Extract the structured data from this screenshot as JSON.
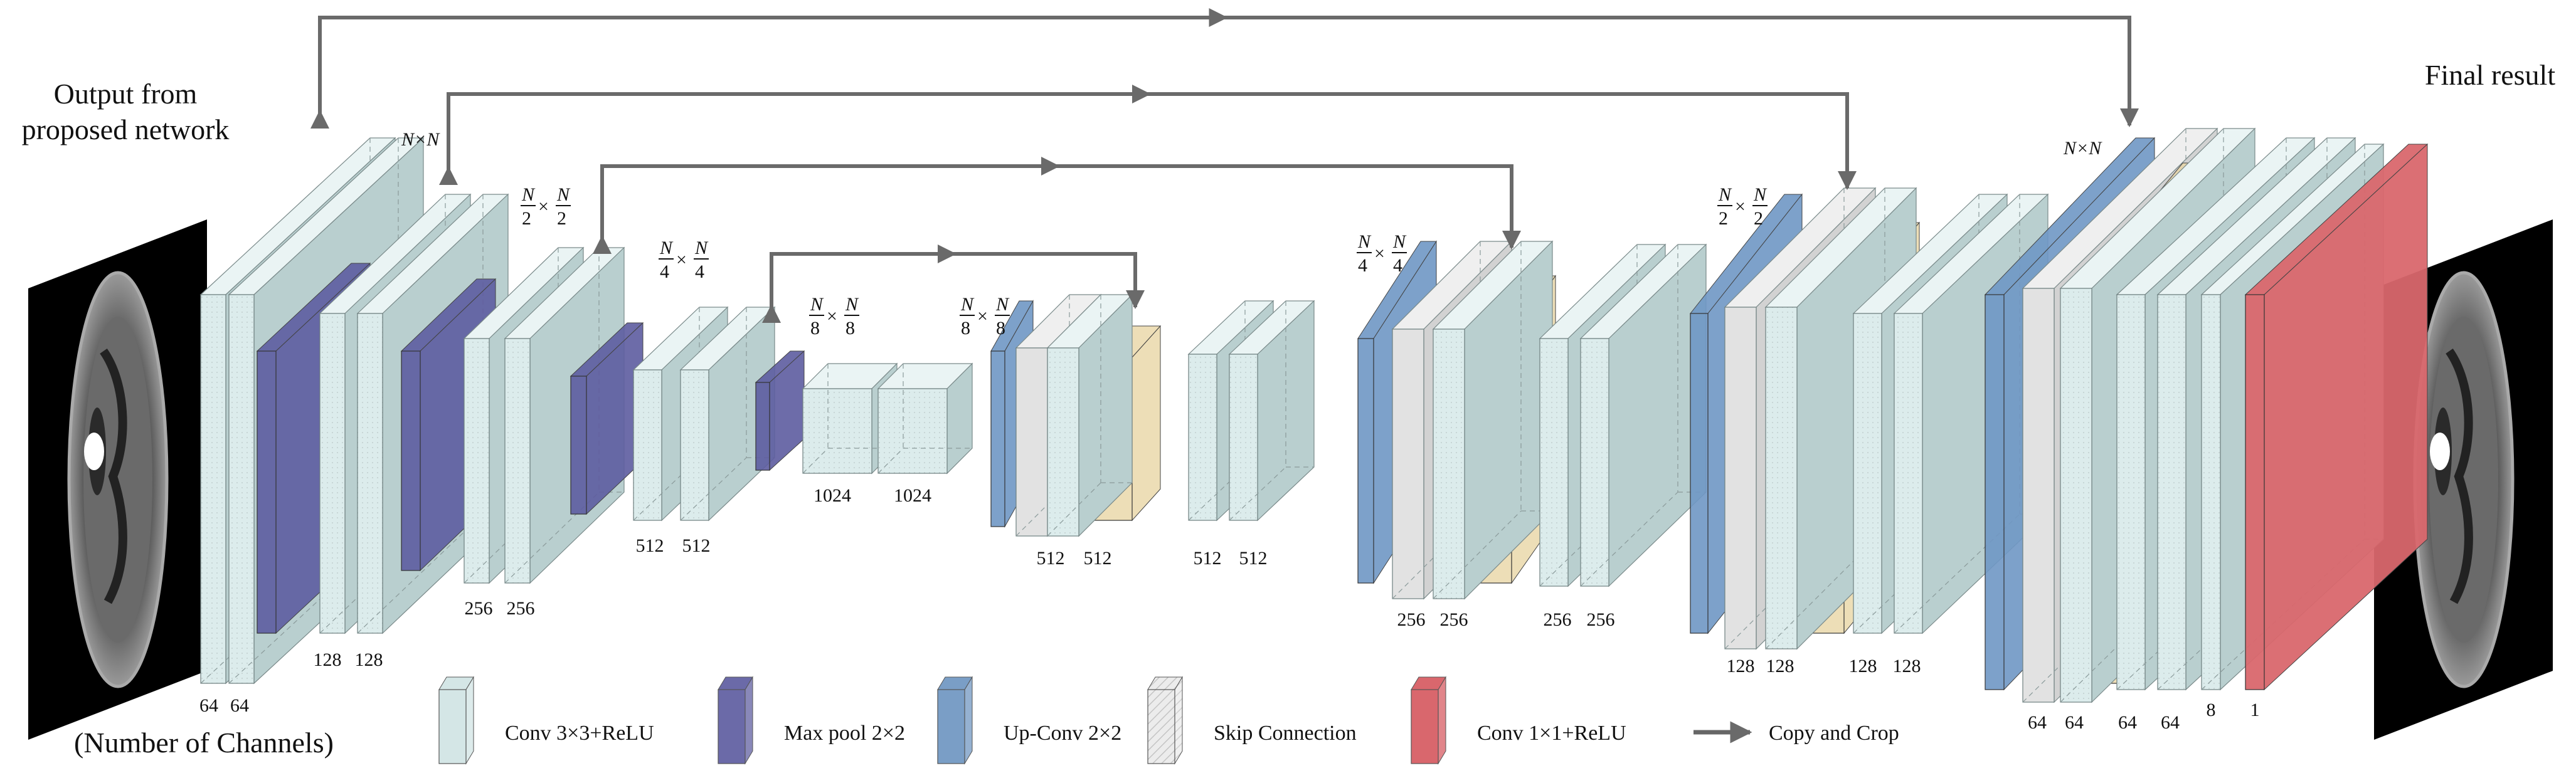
{
  "labels": {
    "input_title_line1": "Output from",
    "input_title_line2": "proposed network",
    "output_title": "Final result",
    "channels_caption": "(Number of Channels)"
  },
  "dimension_labels": {
    "level1_left": "N×N",
    "level1_right": "N×N",
    "frac_num": "N",
    "frac_op": "×",
    "den_level2": "2",
    "den_level3": "4",
    "den_level4": "8"
  },
  "channel_counts": {
    "enc1": [
      "64",
      "64"
    ],
    "enc2": [
      "128",
      "128"
    ],
    "enc3": [
      "256",
      "256"
    ],
    "enc4": [
      "512",
      "512"
    ],
    "bottleneck": [
      "1024",
      "1024"
    ],
    "dec4_up": [
      "512",
      "512"
    ],
    "dec4_conv": [
      "512",
      "512"
    ],
    "dec3_up": [
      "256",
      "256"
    ],
    "dec3_conv": [
      "256",
      "256"
    ],
    "dec2_up": [
      "128",
      "128"
    ],
    "dec2_conv": [
      "128",
      "128"
    ],
    "dec1_up": [
      "64",
      "64"
    ],
    "dec1_conv": [
      "64",
      "64"
    ],
    "final_conv": [
      "8"
    ],
    "output": [
      "1"
    ]
  },
  "legend": [
    {
      "key": "conv",
      "label": "Conv 3×3+ReLU",
      "color": "#d4e6e6"
    },
    {
      "key": "maxpool",
      "label": "Max pool 2×2",
      "color": "#6b6aa8"
    },
    {
      "key": "upconv",
      "label": "Up-Conv 2×2",
      "color": "#7a9ec6"
    },
    {
      "key": "skip",
      "label": "Skip Connection",
      "color": "#e6e6e6"
    },
    {
      "key": "conv1x1",
      "label": "Conv 1×1+ReLU",
      "color": "#d9676d"
    },
    {
      "key": "arrow",
      "label": "Copy and Crop",
      "color": "#666666"
    }
  ],
  "colors": {
    "conv_front": "#dcecec",
    "conv_side": "#b9cfcf",
    "conv_top": "#eaf4f4",
    "maxpool": "#5d5ca0",
    "upconv": "#6f97c4",
    "skip": "#e2e2e2",
    "crop": "#e9d6a5",
    "conv1x1": "#d9676d",
    "arrow": "#6a6a6a"
  }
}
